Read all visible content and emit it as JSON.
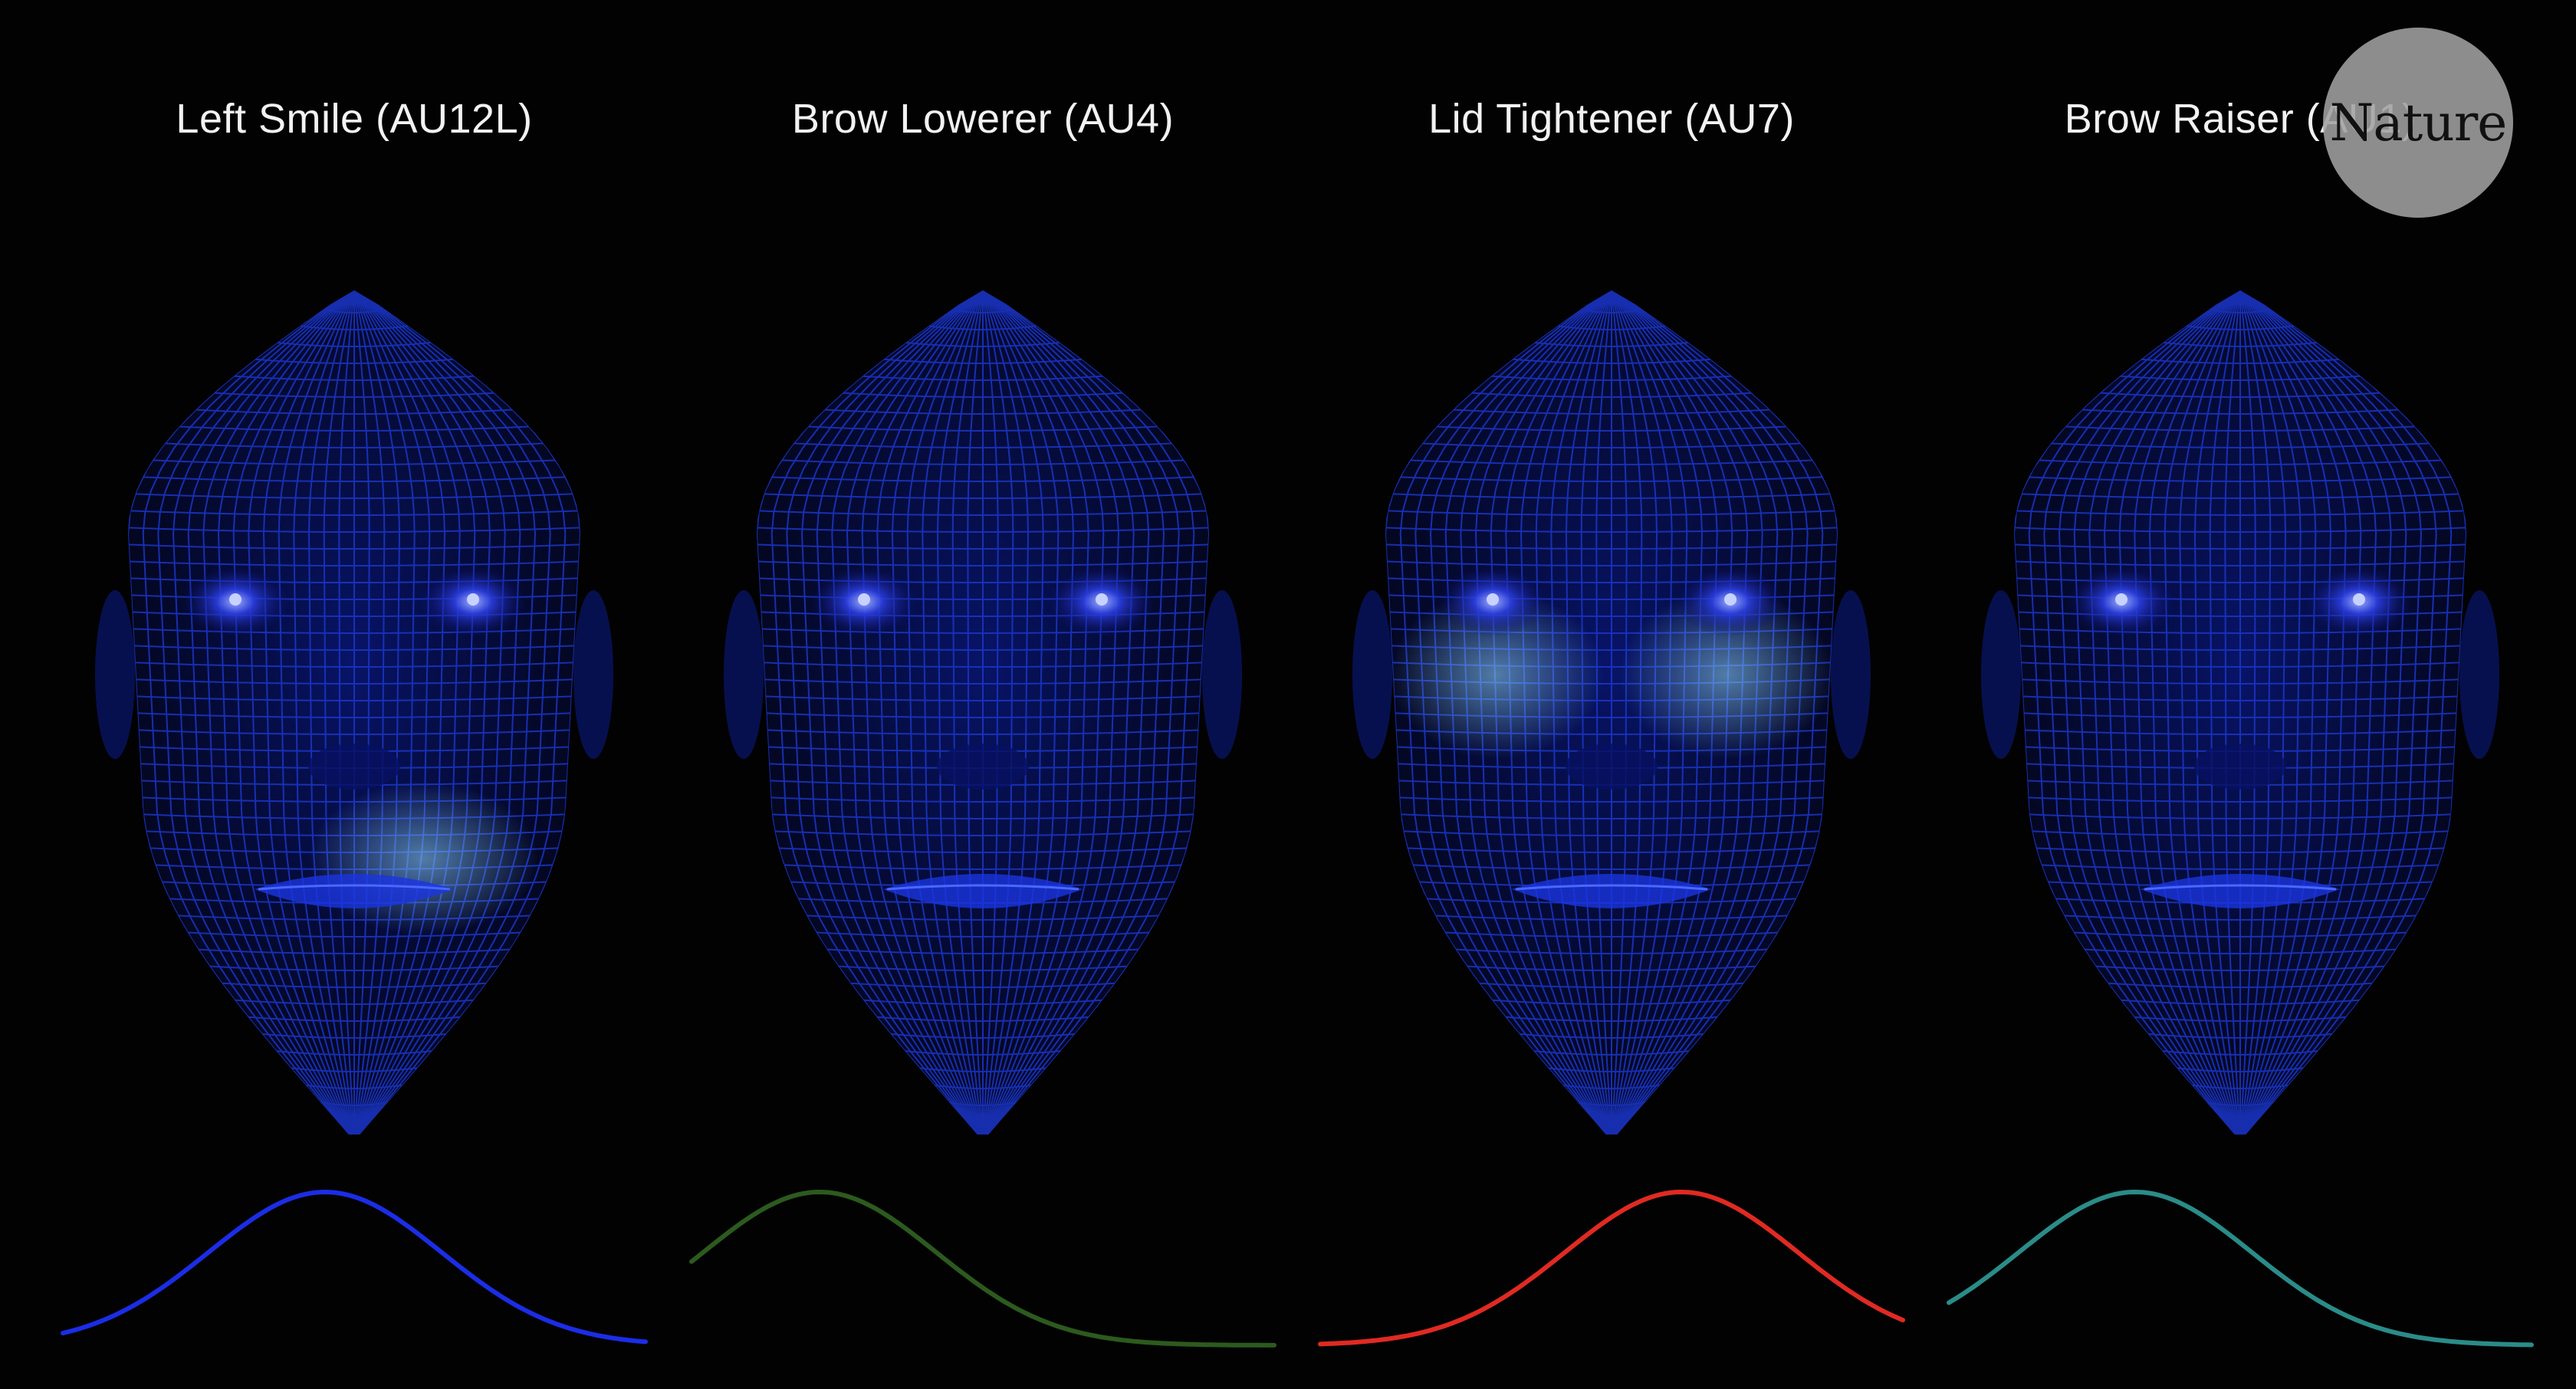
{
  "panels": [
    {
      "title": "Left Smile (AU12L)",
      "curve_color": "#1b2de6",
      "highlight": "mouth-left",
      "curve_peak": 0.45
    },
    {
      "title": "Brow Lowerer (AU4)",
      "curve_color": "#2c5a1e",
      "highlight": "none",
      "curve_peak": 0.22
    },
    {
      "title": "Lid Tightener (AU7)",
      "curve_color": "#e02a22",
      "highlight": "eyes-lower",
      "curve_peak": 0.62
    },
    {
      "title": "Brow Raiser (AU1)",
      "curve_color": "#2a8c88",
      "highlight": "none",
      "curve_peak": 0.32
    }
  ],
  "badge": {
    "text": "Nature"
  },
  "colors": {
    "background": "#020203",
    "mesh": "#1c36c8",
    "mesh_glow": "#8fd8ff"
  }
}
